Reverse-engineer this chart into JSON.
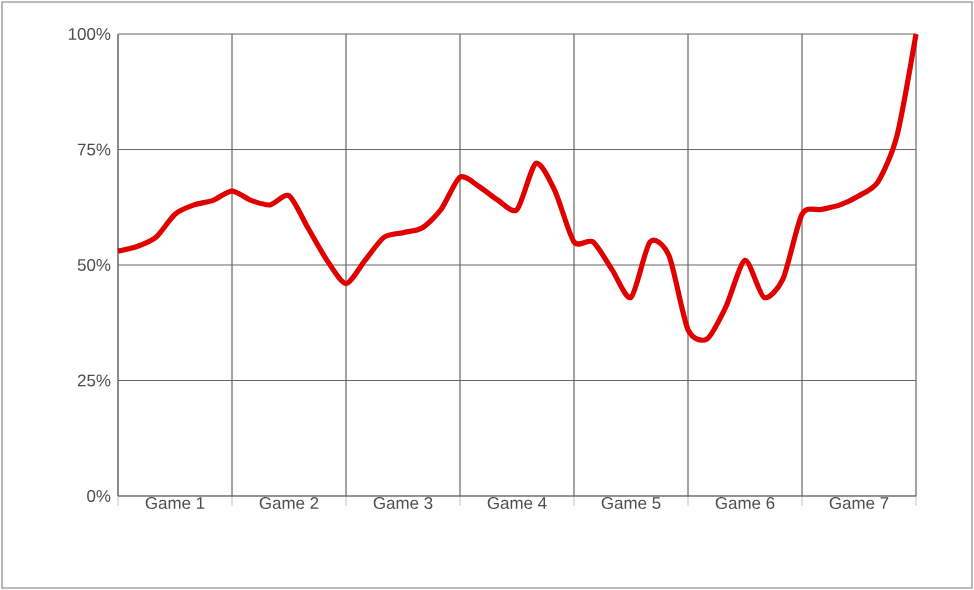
{
  "chart_data": {
    "type": "line",
    "categories": [
      null,
      null,
      null,
      "Game 1",
      null,
      null,
      null,
      null,
      null,
      "Game 2",
      null,
      null,
      null,
      null,
      null,
      "Game 3",
      null,
      null,
      null,
      null,
      null,
      "Game 4",
      null,
      null,
      null,
      null,
      null,
      "Game 5",
      null,
      null,
      null,
      null,
      null,
      "Game 6",
      null,
      null,
      null,
      null,
      null,
      "Game 7",
      null,
      null,
      null
    ],
    "series": [
      {
        "color": "#e00000",
        "values": [
          53,
          54,
          56,
          61,
          63,
          64,
          66,
          64,
          63,
          65,
          58,
          51,
          46,
          51,
          56,
          57,
          58,
          62,
          69,
          67,
          64,
          62,
          72,
          66,
          55,
          55,
          49,
          43,
          55,
          52,
          36,
          34,
          41,
          51,
          43,
          47,
          61,
          62,
          63,
          65,
          68,
          78,
          100
        ]
      }
    ],
    "ylim": [
      0,
      100
    ],
    "yticks": [
      {
        "value": 0,
        "label": "0%"
      },
      {
        "value": 25,
        "label": "25%"
      },
      {
        "value": 50,
        "label": "50%"
      },
      {
        "value": 75,
        "label": "75%"
      },
      {
        "value": 100,
        "label": "100%"
      }
    ],
    "grid": true,
    "marker": "none",
    "line_style": "solid"
  }
}
